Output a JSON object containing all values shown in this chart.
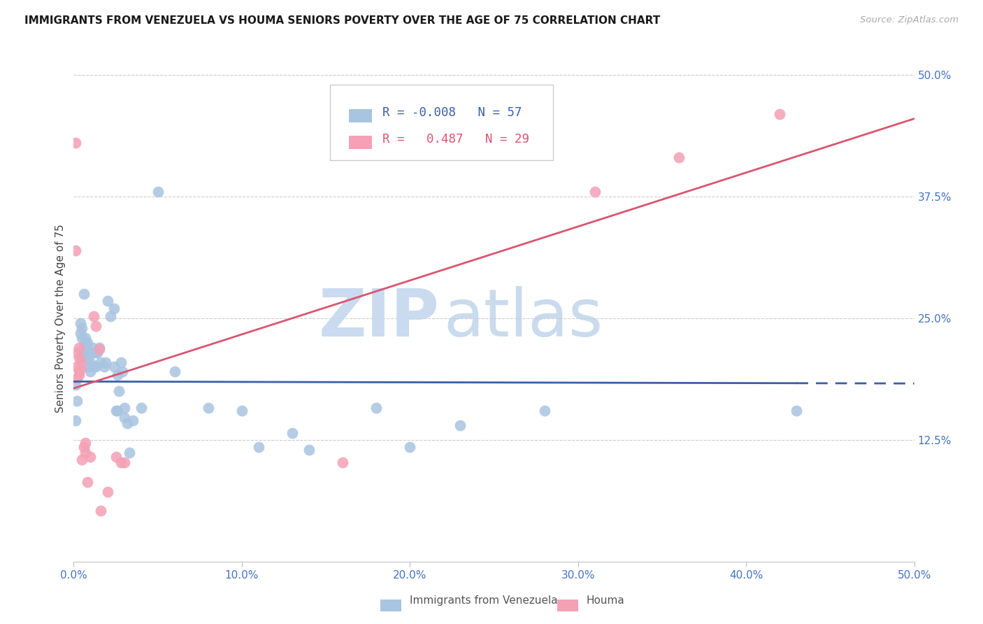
{
  "title": "IMMIGRANTS FROM VENEZUELA VS HOUMA SENIORS POVERTY OVER THE AGE OF 75 CORRELATION CHART",
  "source": "Source: ZipAtlas.com",
  "ylabel": "Seniors Poverty Over the Age of 75",
  "legend_label1": "Immigrants from Venezuela",
  "legend_label2": "Houma",
  "legend_R1": "-0.008",
  "legend_N1": "57",
  "legend_R2": "0.487",
  "legend_N2": "29",
  "xlim": [
    0.0,
    0.5
  ],
  "ylim": [
    0.0,
    0.5
  ],
  "xtick_vals": [
    0.0,
    0.1,
    0.2,
    0.3,
    0.4,
    0.5
  ],
  "ytick_right_vals": [
    0.125,
    0.25,
    0.375,
    0.5
  ],
  "ytick_right_labels": [
    "12.5%",
    "25.0%",
    "37.5%",
    "50.0%"
  ],
  "xtick_labels": [
    "0.0%",
    "10.0%",
    "20.0%",
    "30.0%",
    "40.0%",
    "50.0%"
  ],
  "blue_fill_color": "#a8c4e0",
  "pink_fill_color": "#f4a0b5",
  "blue_line_color": "#3a5fa8",
  "pink_line_color": "#d95570",
  "axis_label_color": "#4472c4",
  "title_color": "#1a1a1a",
  "source_color": "#aaaaaa",
  "grid_color": "#cccccc",
  "background_color": "#ffffff",
  "blue_line_y0": 0.185,
  "blue_line_y1": 0.183,
  "pink_line_y0": 0.178,
  "pink_line_y1": 0.455,
  "blue_scatter": [
    [
      0.001,
      0.145
    ],
    [
      0.002,
      0.165
    ],
    [
      0.001,
      0.182
    ],
    [
      0.004,
      0.245
    ],
    [
      0.004,
      0.235
    ],
    [
      0.005,
      0.21
    ],
    [
      0.005,
      0.23
    ],
    [
      0.005,
      0.24
    ],
    [
      0.006,
      0.22
    ],
    [
      0.006,
      0.275
    ],
    [
      0.007,
      0.23
    ],
    [
      0.007,
      0.215
    ],
    [
      0.007,
      0.225
    ],
    [
      0.008,
      0.21
    ],
    [
      0.008,
      0.225
    ],
    [
      0.009,
      0.215
    ],
    [
      0.009,
      0.2
    ],
    [
      0.01,
      0.195
    ],
    [
      0.01,
      0.205
    ],
    [
      0.011,
      0.22
    ],
    [
      0.011,
      0.215
    ],
    [
      0.012,
      0.2
    ],
    [
      0.013,
      0.215
    ],
    [
      0.013,
      0.2
    ],
    [
      0.014,
      0.215
    ],
    [
      0.015,
      0.22
    ],
    [
      0.016,
      0.205
    ],
    [
      0.018,
      0.2
    ],
    [
      0.019,
      0.205
    ],
    [
      0.02,
      0.268
    ],
    [
      0.022,
      0.252
    ],
    [
      0.024,
      0.26
    ],
    [
      0.024,
      0.2
    ],
    [
      0.025,
      0.155
    ],
    [
      0.026,
      0.155
    ],
    [
      0.026,
      0.192
    ],
    [
      0.027,
      0.175
    ],
    [
      0.028,
      0.205
    ],
    [
      0.029,
      0.195
    ],
    [
      0.03,
      0.158
    ],
    [
      0.03,
      0.148
    ],
    [
      0.032,
      0.142
    ],
    [
      0.033,
      0.112
    ],
    [
      0.035,
      0.145
    ],
    [
      0.04,
      0.158
    ],
    [
      0.05,
      0.38
    ],
    [
      0.06,
      0.195
    ],
    [
      0.08,
      0.158
    ],
    [
      0.1,
      0.155
    ],
    [
      0.11,
      0.118
    ],
    [
      0.13,
      0.132
    ],
    [
      0.14,
      0.115
    ],
    [
      0.18,
      0.158
    ],
    [
      0.2,
      0.118
    ],
    [
      0.23,
      0.14
    ],
    [
      0.28,
      0.155
    ],
    [
      0.43,
      0.155
    ]
  ],
  "pink_scatter": [
    [
      0.001,
      0.43
    ],
    [
      0.001,
      0.32
    ],
    [
      0.002,
      0.215
    ],
    [
      0.002,
      0.2
    ],
    [
      0.002,
      0.188
    ],
    [
      0.003,
      0.22
    ],
    [
      0.003,
      0.195
    ],
    [
      0.003,
      0.192
    ],
    [
      0.003,
      0.21
    ],
    [
      0.004,
      0.205
    ],
    [
      0.004,
      0.198
    ],
    [
      0.005,
      0.105
    ],
    [
      0.006,
      0.118
    ],
    [
      0.007,
      0.112
    ],
    [
      0.007,
      0.122
    ],
    [
      0.008,
      0.082
    ],
    [
      0.01,
      0.108
    ],
    [
      0.012,
      0.252
    ],
    [
      0.013,
      0.242
    ],
    [
      0.015,
      0.218
    ],
    [
      0.016,
      0.052
    ],
    [
      0.02,
      0.072
    ],
    [
      0.025,
      0.108
    ],
    [
      0.028,
      0.102
    ],
    [
      0.03,
      0.102
    ],
    [
      0.16,
      0.102
    ],
    [
      0.31,
      0.38
    ],
    [
      0.36,
      0.415
    ],
    [
      0.42,
      0.46
    ]
  ]
}
